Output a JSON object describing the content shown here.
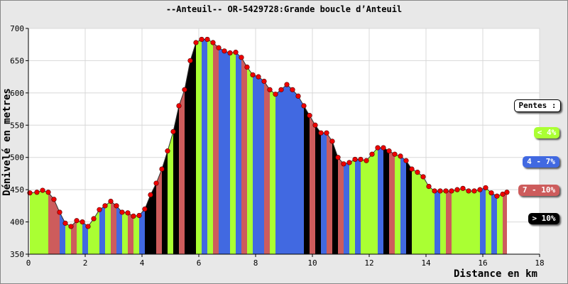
{
  "chart_data": {
    "type": "area",
    "title": "--Anteuil-- OR-5429728:Grande boucle d’Anteuil",
    "xlabel": "Distance en km",
    "ylabel": "Dénivelé en metres",
    "xlim": [
      0,
      18
    ],
    "ylim": [
      350,
      700
    ],
    "x_ticks": [
      0,
      2,
      4,
      6,
      8,
      10,
      12,
      14,
      16,
      18
    ],
    "y_ticks": [
      350,
      400,
      450,
      500,
      550,
      600,
      650,
      700
    ],
    "grid": true,
    "legend_position": "right",
    "legend": {
      "title": "Pentes :",
      "entries": [
        {
          "label": "< 4%",
          "color": "#aaff33"
        },
        {
          "label": "4 - 7%",
          "color": "#4169e1"
        },
        {
          "label": "7 - 10%",
          "color": "#cd5c5c"
        },
        {
          "label": "> 10%",
          "color": "#000000"
        }
      ]
    },
    "series": [
      {
        "x": [
          0.05,
          0.3,
          0.5,
          0.7,
          0.9,
          1.1,
          1.3,
          1.5,
          1.7,
          1.9,
          2.1,
          2.3,
          2.5,
          2.7,
          2.9,
          3.1,
          3.3,
          3.5,
          3.7,
          3.9,
          4.1,
          4.3,
          4.5,
          4.7,
          4.9,
          5.1,
          5.3,
          5.5,
          5.7,
          5.9,
          6.1,
          6.3,
          6.5,
          6.7,
          6.9,
          7.1,
          7.3,
          7.5,
          7.7,
          7.9,
          8.1,
          8.3,
          8.5,
          8.7,
          8.9,
          9.1,
          9.3,
          9.5,
          9.7,
          9.9,
          10.1,
          10.3,
          10.5,
          10.7,
          10.9,
          11.1,
          11.3,
          11.5,
          11.7,
          11.9,
          12.1,
          12.3,
          12.5,
          12.7,
          12.9,
          13.1,
          13.3,
          13.5,
          13.7,
          13.9,
          14.1,
          14.3,
          14.5,
          14.7,
          14.9,
          15.1,
          15.3,
          15.5,
          15.7,
          15.9,
          16.1,
          16.3,
          16.5,
          16.7,
          16.85
        ],
        "y": [
          445,
          446,
          449,
          446,
          435,
          415,
          398,
          393,
          402,
          400,
          393,
          405,
          419,
          425,
          432,
          425,
          415,
          414,
          409,
          410,
          420,
          442,
          460,
          482,
          510,
          540,
          580,
          605,
          650,
          678,
          683,
          683,
          678,
          670,
          665,
          662,
          663,
          655,
          640,
          628,
          625,
          618,
          605,
          598,
          605,
          613,
          605,
          595,
          580,
          565,
          550,
          538,
          538,
          525,
          500,
          490,
          492,
          497,
          497,
          495,
          505,
          515,
          515,
          510,
          505,
          502,
          495,
          482,
          477,
          470,
          455,
          448,
          448,
          448,
          448,
          450,
          452,
          448,
          448,
          450,
          453,
          445,
          440,
          443,
          446
        ],
        "slope_colors": [
          "#aaff33",
          "#aaff33",
          "#aaff33",
          "#cd5c5c",
          "#cd5c5c",
          "#4169e1",
          "#aaff33",
          "#cd5c5c",
          "#aaff33",
          "#4169e1",
          "#aaff33",
          "#aaff33",
          "#4169e1",
          "#aaff33",
          "#cd5c5c",
          "#4169e1",
          "#aaff33",
          "#cd5c5c",
          "#aaff33",
          "#4169e1",
          "#000000",
          "#000000",
          "#cd5c5c",
          "#000000",
          "#aaff33",
          "#000000",
          "#cd5c5c",
          "#000000",
          "#000000",
          "#aaff33",
          "#4169e1",
          "#aaff33",
          "#cd5c5c",
          "#4169e1",
          "#4169e1",
          "#aaff33",
          "#4169e1",
          "#cd5c5c",
          "#aaff33",
          "#4169e1",
          "#4169e1",
          "#cd5c5c",
          "#aaff33",
          "#4169e1",
          "#4169e1",
          "#4169e1",
          "#4169e1",
          "#4169e1",
          "#000000",
          "#cd5c5c",
          "#000000",
          "#4169e1",
          "#cd5c5c",
          "#000000",
          "#cd5c5c",
          "#4169e1",
          "#aaff33",
          "#4169e1",
          "#aaff33",
          "#aaff33",
          "#aaff33",
          "#4169e1",
          "#000000",
          "#cd5c5c",
          "#aaff33",
          "#4169e1",
          "#000000",
          "#aaff33",
          "#aaff33",
          "#aaff33",
          "#aaff33",
          "#4169e1",
          "#aaff33",
          "#cd5c5c",
          "#aaff33",
          "#aaff33",
          "#aaff33",
          "#aaff33",
          "#aaff33",
          "#4169e1",
          "#aaff33",
          "#4169e1",
          "#aaff33",
          "#cd5c5c"
        ]
      }
    ],
    "marker_color": "#ee0000"
  }
}
